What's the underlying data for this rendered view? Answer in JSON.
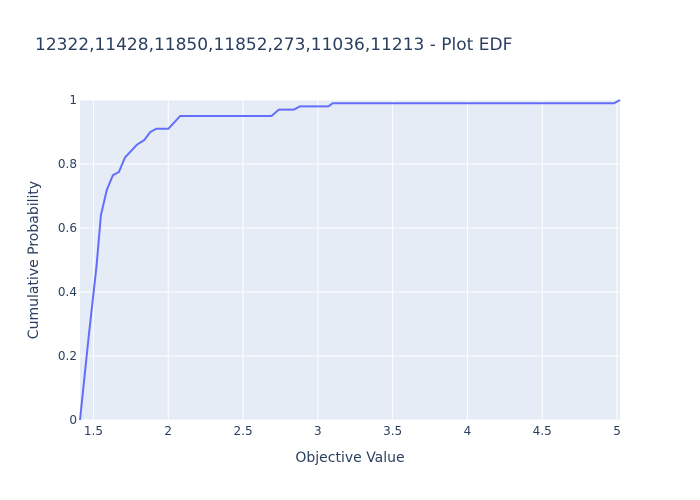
{
  "chart_data": {
    "type": "line",
    "title": "12322,11428,11850,11852,273,11036,11213 - Plot EDF",
    "xlabel": "Objective Value",
    "ylabel": "Cumulative Probability",
    "xlim": [
      1.41,
      5.02
    ],
    "ylim": [
      0,
      1
    ],
    "xticks": [
      1.5,
      2,
      2.5,
      3,
      3.5,
      4,
      4.5,
      5
    ],
    "xtick_labels": [
      "1.5",
      "2",
      "2.5",
      "3",
      "3.5",
      "4",
      "4.5",
      "5"
    ],
    "yticks": [
      0,
      0.2,
      0.4,
      0.6,
      0.8,
      1
    ],
    "ytick_labels": [
      "0",
      "0.2",
      "0.4",
      "0.6",
      "0.8",
      "1"
    ],
    "grid": true,
    "colors": {
      "line": "#636efa",
      "plot_bg": "#e5ecf6",
      "grid": "#ffffff",
      "text": "#2a3f5f"
    },
    "series": [
      {
        "x": [
          1.41,
          1.47,
          1.52,
          1.55,
          1.59,
          1.63,
          1.67,
          1.71,
          1.75,
          1.79,
          1.84,
          1.88,
          1.92,
          2.0,
          2.08,
          2.15,
          2.3,
          2.5,
          2.69,
          2.74,
          2.84,
          2.88,
          3.0,
          3.07,
          3.1,
          3.3,
          3.6,
          4.0,
          4.5,
          4.98,
          5.02
        ],
        "y": [
          0.0,
          0.27,
          0.48,
          0.64,
          0.72,
          0.765,
          0.775,
          0.82,
          0.84,
          0.86,
          0.875,
          0.9,
          0.91,
          0.91,
          0.95,
          0.95,
          0.95,
          0.95,
          0.95,
          0.97,
          0.97,
          0.98,
          0.98,
          0.98,
          0.99,
          0.99,
          0.99,
          0.99,
          0.99,
          0.99,
          1.0
        ]
      }
    ]
  }
}
